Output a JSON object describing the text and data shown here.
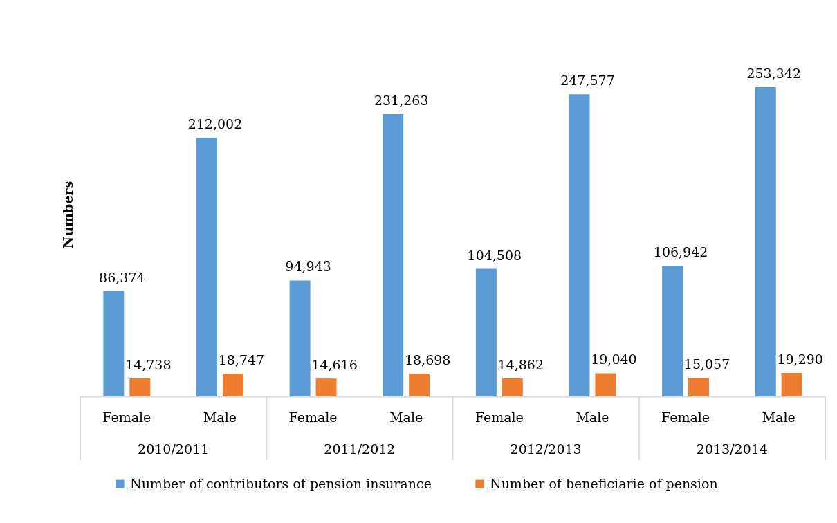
{
  "chart_data": {
    "type": "bar",
    "ylabel": "Numbers",
    "categories": [
      "Female",
      "Male",
      "Female",
      "Male",
      "Female",
      "Male",
      "Female",
      "Male"
    ],
    "series": [
      {
        "name": "Number of contributors of pension insurance",
        "color": "#5b9bd5",
        "values": [
          86374,
          212002,
          94943,
          231263,
          104508,
          247577,
          106942,
          253342
        ],
        "value_labels": [
          "86,374",
          "212,002",
          "94,943",
          "231,263",
          "104,508",
          "247,577",
          "106,942",
          "253,342"
        ]
      },
      {
        "name": "Number of beneficiarie of pension",
        "color": "#ed7d31",
        "values": [
          14738,
          18747,
          14616,
          18698,
          14862,
          19040,
          15057,
          19290
        ],
        "value_labels": [
          "14,738",
          "18,747",
          "14,616",
          "18,698",
          "14,862",
          "19,040",
          "15,057",
          "19,290"
        ]
      }
    ],
    "annotations": [
      "2010/2011",
      "2011/2012",
      "2012/2013",
      "2013/2014"
    ],
    "legend": "bottom"
  }
}
